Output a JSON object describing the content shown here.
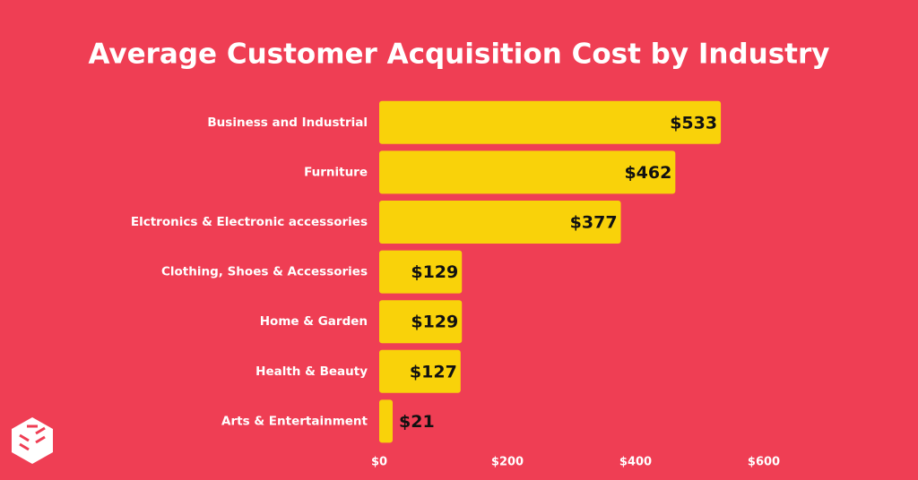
{
  "chart_data": {
    "type": "bar",
    "orientation": "horizontal",
    "title": "Average Customer Acquisition Cost by Industry",
    "categories": [
      "Business and Industrial",
      "Furniture",
      "Elctronics & Electronic accessories",
      "Clothing, Shoes & Accessories",
      "Home & Garden",
      "Health & Beauty",
      "Arts & Entertainment"
    ],
    "values": [
      533,
      462,
      377,
      129,
      129,
      127,
      21
    ],
    "value_labels": [
      "$533",
      "$462",
      "$377",
      "$129",
      "$129",
      "$127",
      "$21"
    ],
    "color": "#f9d20a",
    "xlim": [
      0,
      600
    ],
    "xticks": [
      {
        "value": 0,
        "label": "$0"
      },
      {
        "value": 200,
        "label": "$200"
      },
      {
        "value": 400,
        "label": "$400"
      },
      {
        "value": 600,
        "label": "$600"
      }
    ],
    "grid": false
  }
}
